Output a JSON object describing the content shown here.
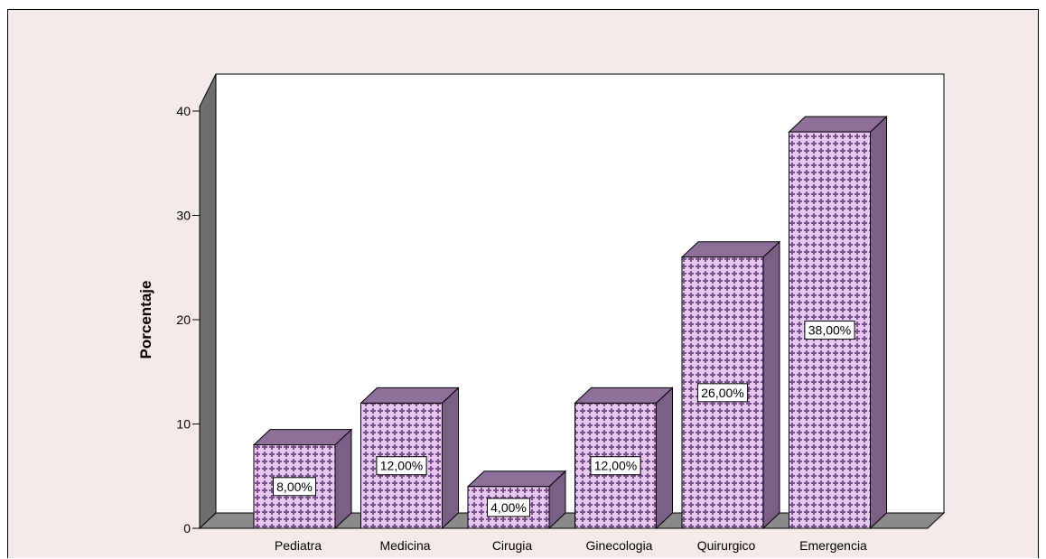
{
  "chart_data": {
    "type": "bar",
    "style": "3d",
    "categories": [
      "Pediatra",
      "Medicina",
      "Cirugia",
      "Ginecologia",
      "Quirurgico",
      "Emergencia"
    ],
    "values": [
      8,
      12,
      4,
      12,
      26,
      38
    ],
    "data_labels": [
      "8,00%",
      "12,00%",
      "4,00%",
      "12,00%",
      "26,00%",
      "38,00%"
    ],
    "title": "",
    "xlabel": "",
    "ylabel": "Porcentaje",
    "ylim": [
      0,
      40
    ],
    "yticks": [
      0,
      10,
      20,
      30,
      40
    ],
    "legend": "none",
    "grid": false,
    "colors": {
      "background": "#f4ebe9",
      "plot_wall": "#ffffff",
      "side_wall": "#6e6e6e",
      "floor": "#8a8a8a",
      "bar_front": "#e6c8f0",
      "bar_pattern": "#7a4f8c",
      "bar_top": "#8e6f9a",
      "bar_side": "#7a5f86"
    }
  }
}
